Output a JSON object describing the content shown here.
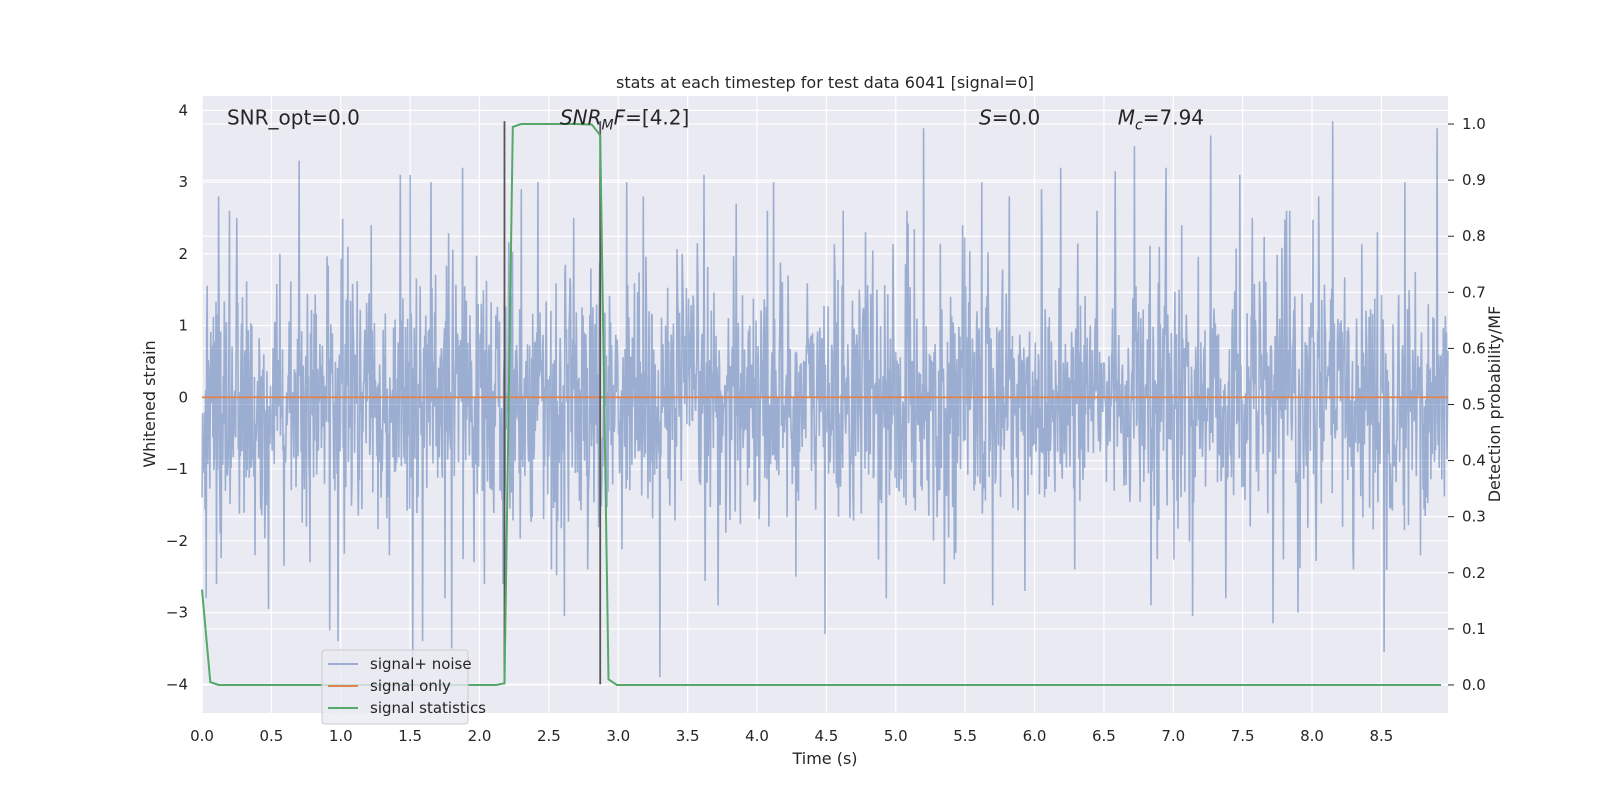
{
  "chart_data": {
    "type": "line",
    "title": "stats at each timestep for test data 6041 [signal=0]",
    "xlabel": "Time (s)",
    "ylabel_left": "Whitened strain",
    "ylabel_right": "Detection probability/MF",
    "xlim": [
      0.0,
      8.98
    ],
    "ylim_left": [
      -4.4,
      4.2
    ],
    "ylim_right": [
      -0.05,
      1.05
    ],
    "x_ticks": [
      0.0,
      0.5,
      1.0,
      1.5,
      2.0,
      2.5,
      3.0,
      3.5,
      4.0,
      4.5,
      5.0,
      5.5,
      6.0,
      6.5,
      7.0,
      7.5,
      8.0,
      8.5
    ],
    "x_tick_labels": [
      "0.0",
      "0.5",
      "1.0",
      "1.5",
      "2.0",
      "2.5",
      "3.0",
      "3.5",
      "4.0",
      "4.5",
      "5.0",
      "5.5",
      "6.0",
      "6.5",
      "7.0",
      "7.5",
      "8.0",
      "8.5"
    ],
    "y_ticks_left": [
      -4,
      -3,
      -2,
      -1,
      0,
      1,
      2,
      3,
      4
    ],
    "y_tick_labels_left": [
      "−4",
      "−3",
      "−2",
      "−1",
      "0",
      "1",
      "2",
      "3",
      "4"
    ],
    "y_ticks_right": [
      0.0,
      0.1,
      0.2,
      0.3,
      0.4,
      0.5,
      0.6,
      0.7,
      0.8,
      0.9,
      1.0
    ],
    "y_tick_labels_right": [
      "0.0",
      "0.1",
      "0.2",
      "0.3",
      "0.4",
      "0.5",
      "0.6",
      "0.7",
      "0.8",
      "0.9",
      "1.0"
    ],
    "grid": true,
    "legend_position": "lower-left",
    "annotations": [
      {
        "key": "snr-opt",
        "text": "SNR_opt=0.0",
        "x": 0.18,
        "y": 3.9
      },
      {
        "key": "snr-mf",
        "text": "SNR_MF=[4.2]",
        "x": 2.58,
        "y": 3.9
      },
      {
        "key": "s-value",
        "text": "S=0.0",
        "x": 5.6,
        "y": 3.9
      },
      {
        "key": "mc-value",
        "text": "M_c=7.94",
        "x": 6.6,
        "y": 3.9
      }
    ],
    "vlines": [
      {
        "x": 2.18,
        "ymin": -4.0,
        "ymax": 3.85,
        "color": "#555555"
      },
      {
        "x": 2.87,
        "ymin": -4.0,
        "ymax": 3.85,
        "color": "#555555"
      }
    ],
    "series": [
      {
        "name": "signal+ noise",
        "axis": "left",
        "color": "#4c72b0",
        "opacity": 0.5,
        "kind": "noise",
        "typical_amplitude": 1.5,
        "peaks": [
          [
            0.03,
            2.9
          ],
          [
            0.03,
            -2.8
          ],
          [
            0.12,
            2.8
          ],
          [
            0.25,
            2.5
          ],
          [
            0.38,
            -2.2
          ],
          [
            0.48,
            -2.95
          ],
          [
            0.56,
            2.0
          ],
          [
            0.7,
            3.3
          ],
          [
            0.78,
            -2.3
          ],
          [
            0.92,
            -3.25
          ],
          [
            0.98,
            -3.4
          ],
          [
            1.05,
            2.1
          ],
          [
            1.22,
            2.4
          ],
          [
            1.35,
            -2.2
          ],
          [
            1.43,
            3.1
          ],
          [
            1.5,
            3.1
          ],
          [
            1.52,
            -3.65
          ],
          [
            1.59,
            -3.4
          ],
          [
            1.65,
            3.0
          ],
          [
            1.75,
            -2.8
          ],
          [
            1.8,
            -3.5
          ],
          [
            1.88,
            3.2
          ],
          [
            1.96,
            -2.3
          ],
          [
            2.17,
            -2.6
          ],
          [
            2.3,
            2.9
          ],
          [
            2.42,
            3.0
          ],
          [
            2.52,
            -2.4
          ],
          [
            2.61,
            -3.05
          ],
          [
            2.68,
            2.5
          ],
          [
            2.78,
            -2.4
          ],
          [
            3.06,
            3.0
          ],
          [
            3.18,
            2.8
          ],
          [
            3.3,
            -3.9
          ],
          [
            3.46,
            2.0
          ],
          [
            3.62,
            3.1
          ],
          [
            3.72,
            -2.9
          ],
          [
            3.85,
            2.7
          ],
          [
            4.12,
            3.0
          ],
          [
            4.28,
            -2.5
          ],
          [
            4.49,
            -3.3
          ],
          [
            4.62,
            2.6
          ],
          [
            4.78,
            2.3
          ],
          [
            4.93,
            -2.8
          ],
          [
            5.08,
            2.6
          ],
          [
            5.2,
            3.75
          ],
          [
            5.35,
            -2.6
          ],
          [
            5.48,
            2.4
          ],
          [
            5.62,
            3.0
          ],
          [
            5.7,
            -2.9
          ],
          [
            5.82,
            2.8
          ],
          [
            5.93,
            -2.7
          ],
          [
            6.05,
            2.9
          ],
          [
            6.19,
            3.2
          ],
          [
            6.29,
            -2.4
          ],
          [
            6.45,
            2.6
          ],
          [
            6.58,
            3.15
          ],
          [
            6.72,
            3.5
          ],
          [
            6.84,
            -2.9
          ],
          [
            6.95,
            3.2
          ],
          [
            7.06,
            2.4
          ],
          [
            7.14,
            -3.05
          ],
          [
            7.27,
            3.65
          ],
          [
            7.38,
            -2.8
          ],
          [
            7.48,
            3.1
          ],
          [
            7.57,
            2.5
          ],
          [
            7.72,
            -3.15
          ],
          [
            7.84,
            2.6
          ],
          [
            7.9,
            -3.0
          ],
          [
            8.05,
            2.8
          ],
          [
            8.15,
            3.85
          ],
          [
            8.3,
            -2.4
          ],
          [
            8.47,
            2.3
          ],
          [
            8.52,
            -3.55
          ],
          [
            8.67,
            3.0
          ],
          [
            8.78,
            -2.2
          ],
          [
            8.9,
            3.75
          ]
        ]
      },
      {
        "name": "signal only",
        "axis": "left",
        "color": "#dd8452",
        "x": [
          0.0,
          8.98
        ],
        "y": [
          0.0,
          0.0
        ]
      },
      {
        "name": "signal statistics",
        "axis": "right",
        "color": "#55a868",
        "x": [
          0.0,
          0.06,
          0.12,
          1.0,
          2.0,
          2.12,
          2.18,
          2.24,
          2.3,
          2.7,
          2.81,
          2.87,
          2.93,
          2.99,
          3.5,
          8.93
        ],
        "y": [
          0.17,
          0.005,
          0.0,
          0.0,
          0.0,
          0.0,
          0.003,
          0.995,
          1.0,
          1.0,
          0.999,
          0.98,
          0.01,
          0.0,
          0.0,
          0.0
        ]
      }
    ]
  }
}
